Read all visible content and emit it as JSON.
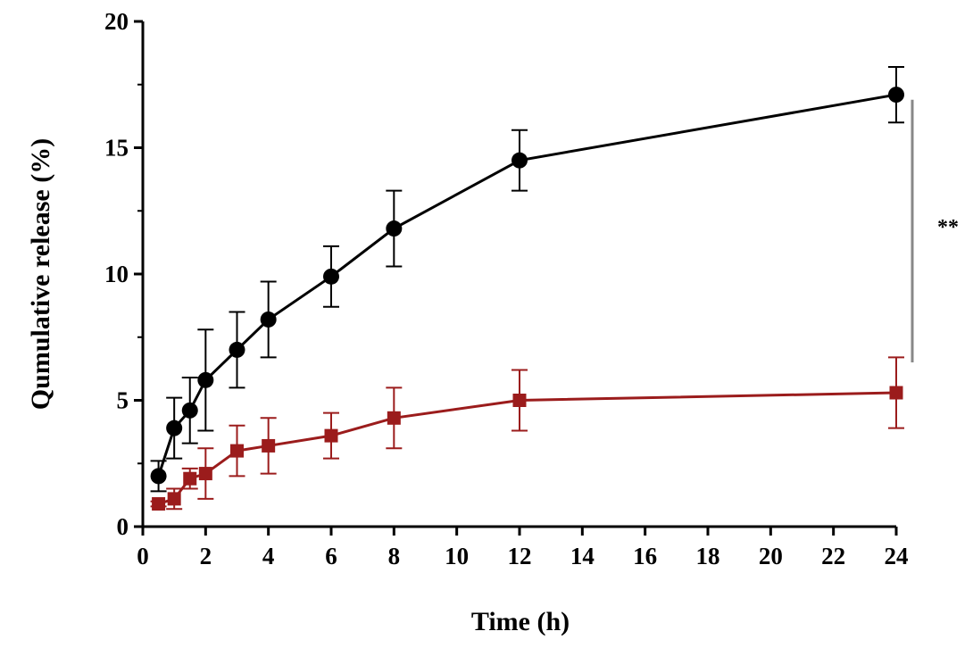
{
  "chart_data": {
    "type": "line",
    "title": "",
    "xlabel": "Time (h)",
    "ylabel": "Qumulative release (%)",
    "xlim": [
      0,
      24
    ],
    "ylim": [
      0,
      20
    ],
    "xticks": [
      0,
      2,
      4,
      6,
      8,
      10,
      12,
      14,
      16,
      18,
      20,
      22,
      24
    ],
    "yticks": [
      0,
      5,
      10,
      15,
      20
    ],
    "grid": false,
    "legend": "none",
    "series": [
      {
        "name": "black-circles",
        "color": "#000000",
        "marker": "circle",
        "x": [
          0.5,
          1,
          1.5,
          2,
          3,
          4,
          6,
          8,
          12,
          24
        ],
        "y": [
          2.0,
          3.9,
          4.6,
          5.8,
          7.0,
          8.2,
          9.9,
          11.8,
          14.5,
          17.1
        ],
        "err": [
          0.6,
          1.2,
          1.3,
          2.0,
          1.5,
          1.5,
          1.2,
          1.5,
          1.2,
          1.1
        ]
      },
      {
        "name": "red-squares",
        "color": "#9b1c1c",
        "marker": "square",
        "x": [
          0.5,
          1,
          1.5,
          2,
          3,
          4,
          6,
          8,
          12,
          24
        ],
        "y": [
          0.9,
          1.1,
          1.9,
          2.1,
          3.0,
          3.2,
          3.6,
          4.3,
          5.0,
          5.3
        ],
        "err": [
          0.1,
          0.4,
          0.4,
          1.0,
          1.0,
          1.1,
          0.9,
          1.2,
          1.2,
          1.4
        ]
      }
    ],
    "annotation": {
      "text": "**",
      "color": "#888888",
      "between": "series at 24 h"
    }
  }
}
